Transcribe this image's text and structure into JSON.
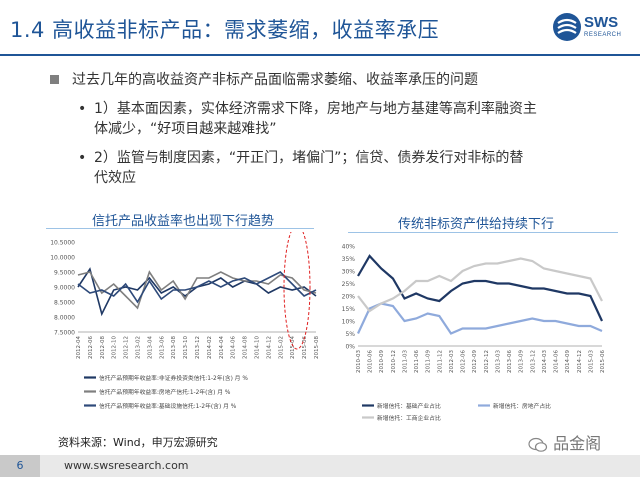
{
  "header": {
    "title": "1.4  高收益非标产品：需求萎缩，收益率承压",
    "logo_text": "SWS",
    "logo_sub": "RESEARCH"
  },
  "bullets": {
    "main": "过去几年的高收益资产非标产品面临需求萎缩、收益率承压的问题",
    "sub1_line1": "1）基本面因素，实体经济需求下降，房地产与地方基建等高利率融资主",
    "sub1_line2": "体减少，“好项目越来越难找”",
    "sub2_line1": "2）监管与制度因素，“开正门，堵偏门”；信贷、债券发行对非标的替",
    "sub2_line2": "代效应",
    "bullet_glyph": "•"
  },
  "chart_data": [
    {
      "type": "line",
      "title": "信托产品收益率也出现下行趋势",
      "ylim": [
        7.5,
        10.5
      ],
      "yticks": [
        "10.5000",
        "10.0000",
        "9.5000",
        "9.0000",
        "8.5000",
        "8.0000",
        "7.5000"
      ],
      "x": [
        "2012-04",
        "2012-06",
        "2012-08",
        "2012-10",
        "2012-12",
        "2013-02",
        "2013-04",
        "2013-06",
        "2013-08",
        "2013-10",
        "2013-12",
        "2014-02",
        "2014-04",
        "2014-06",
        "2014-08",
        "2014-10",
        "2014-12",
        "2015-02",
        "2015-04",
        "2015-06",
        "2015-08"
      ],
      "series": [
        {
          "name": "信托产品预期年收益率:非证券投资类信托:1-2年(含) 月 %",
          "color": "#1f3864",
          "values": [
            9.0,
            9.6,
            8.1,
            8.9,
            9.0,
            8.9,
            9.3,
            8.8,
            9.0,
            8.7,
            9.0,
            9.1,
            9.3,
            9.0,
            9.2,
            9.1,
            8.8,
            9.0,
            8.9,
            9.0,
            8.7
          ]
        },
        {
          "name": "信托产品预期年收益率:房地产信托:1-2年(含) 月 %",
          "color": "#7f7f7f",
          "values": [
            9.4,
            9.5,
            8.8,
            9.1,
            8.7,
            8.3,
            9.5,
            8.9,
            9.2,
            8.6,
            9.3,
            9.3,
            9.5,
            9.3,
            9.2,
            9.2,
            9.1,
            9.4,
            9.3,
            8.9,
            8.8
          ]
        },
        {
          "name": "信托产品预期年收益率:基础设施信托:1-2年(含) 月 %",
          "color": "#2e4a7a",
          "values": [
            9.1,
            8.8,
            8.9,
            8.7,
            9.1,
            8.5,
            9.2,
            8.6,
            8.9,
            8.9,
            9.0,
            9.2,
            9.0,
            9.2,
            9.3,
            9.1,
            9.3,
            9.5,
            9.1,
            8.7,
            8.9
          ]
        }
      ]
    },
    {
      "type": "line",
      "title": "传统非标资产供给持续下行",
      "ylim": [
        0,
        40
      ],
      "yticks": [
        "40%",
        "35%",
        "30%",
        "25%",
        "20%",
        "15%",
        "10%",
        "5%",
        "0%"
      ],
      "x": [
        "2010-03",
        "2010-06",
        "2010-09",
        "2010-12",
        "2011-03",
        "2011-06",
        "2011-09",
        "2011-12",
        "2012-03",
        "2012-06",
        "2012-09",
        "2012-12",
        "2013-03",
        "2013-06",
        "2013-09",
        "2013-12",
        "2014-03",
        "2014-06",
        "2014-09",
        "2014-12",
        "2015-03",
        "2015-06"
      ],
      "series": [
        {
          "name": "新增信托：基础产业占比",
          "color": "#1f3864",
          "values": [
            28,
            36,
            31,
            27,
            19,
            21,
            19,
            18,
            22,
            25,
            26,
            26,
            25,
            25,
            24,
            23,
            23,
            22,
            21,
            21,
            20,
            10
          ]
        },
        {
          "name": "新增信托：房地产占比",
          "color": "#8faadc",
          "values": [
            5,
            15,
            17,
            16,
            10,
            11,
            13,
            12,
            5,
            7,
            7,
            7,
            8,
            9,
            10,
            11,
            10,
            10,
            9,
            8,
            8,
            6
          ]
        },
        {
          "name": "新增信托：工商企业占比",
          "color": "#c9c9c9",
          "values": [
            20,
            14,
            17,
            19,
            22,
            26,
            26,
            28,
            26,
            30,
            32,
            33,
            33,
            34,
            35,
            34,
            31,
            30,
            29,
            28,
            27,
            18
          ]
        }
      ]
    }
  ],
  "source": "资料来源：Wind，申万宏源研究",
  "footer": {
    "page": "6",
    "url": "www.swsresearch.com"
  },
  "watermark": "品金阁"
}
